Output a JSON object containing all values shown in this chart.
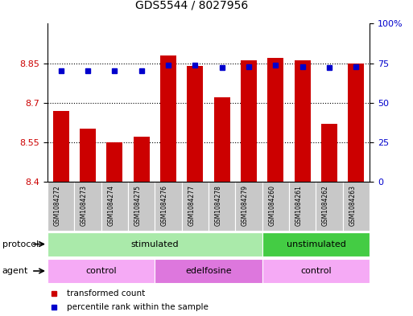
{
  "title": "GDS5544 / 8027956",
  "samples": [
    "GSM1084272",
    "GSM1084273",
    "GSM1084274",
    "GSM1084275",
    "GSM1084276",
    "GSM1084277",
    "GSM1084278",
    "GSM1084279",
    "GSM1084260",
    "GSM1084261",
    "GSM1084262",
    "GSM1084263"
  ],
  "transformed_count": [
    8.67,
    8.6,
    8.55,
    8.57,
    8.88,
    8.84,
    8.72,
    8.86,
    8.87,
    8.86,
    8.62,
    8.85
  ],
  "percentile_rank": [
    70,
    70,
    70,
    70,
    74,
    74,
    72,
    73,
    74,
    73,
    72,
    73
  ],
  "ylim_left": [
    8.4,
    9.0
  ],
  "ylim_right": [
    0,
    100
  ],
  "yticks_left": [
    8.4,
    8.55,
    8.7,
    8.85
  ],
  "ytick_labels_left": [
    "8.4",
    "8.55",
    "8.7",
    "8.85"
  ],
  "yticks_right": [
    0,
    25,
    50,
    75,
    100
  ],
  "ytick_labels_right": [
    "0",
    "25",
    "50",
    "75",
    "100%"
  ],
  "hgrid_lines": [
    8.55,
    8.7,
    8.85
  ],
  "bar_color": "#cc0000",
  "dot_color": "#0000cc",
  "bar_bottom": 8.4,
  "bar_width": 0.6,
  "protocol_groups": [
    {
      "label": "stimulated",
      "start": 0,
      "end": 8,
      "color": "#aaeaaa"
    },
    {
      "label": "unstimulated",
      "start": 8,
      "end": 12,
      "color": "#44cc44"
    }
  ],
  "agent_groups": [
    {
      "label": "control",
      "start": 0,
      "end": 4,
      "color": "#f5aaf5"
    },
    {
      "label": "edelfosine",
      "start": 4,
      "end": 8,
      "color": "#dd77dd"
    },
    {
      "label": "control",
      "start": 8,
      "end": 12,
      "color": "#f5aaf5"
    }
  ],
  "legend_items": [
    {
      "label": "transformed count",
      "color": "#cc0000"
    },
    {
      "label": "percentile rank within the sample",
      "color": "#0000cc"
    }
  ],
  "label_protocol": "protocol",
  "label_agent": "agent",
  "background_color": "white",
  "xlabels_bg": "#c8c8c8",
  "cell_edge": "white"
}
